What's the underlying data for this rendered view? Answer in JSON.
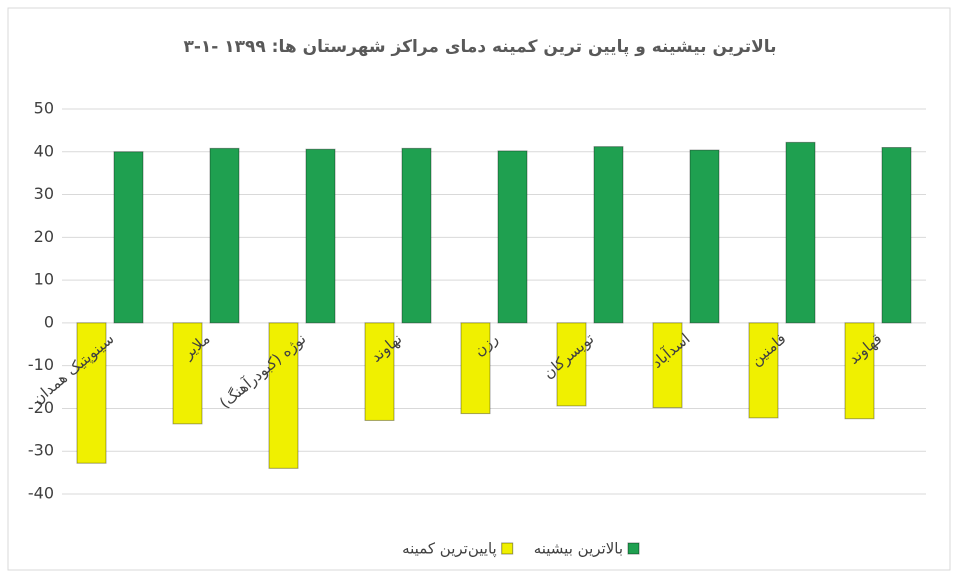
{
  "chart_data": {
    "type": "bar",
    "title": "۳-۱- بالاترین بیشینه و پایین ترین کمینه دمای مراکز شهرستان ها: ۱۳۹۹",
    "categories": [
      "سینوپتیک همدان",
      "ملایر",
      "نوژه (کبودرآهنگ)",
      "نهاوند",
      "رزن",
      "تویسرکان",
      "اسدآباد",
      "فامنین",
      "قهاوند"
    ],
    "series": [
      {
        "name": "پایین‌ترین کمینه",
        "color": "#f0f000",
        "values": [
          -32.8,
          -23.6,
          -34,
          -22.8,
          -21.2,
          -19.4,
          -19.8,
          -22.2,
          -22.4
        ]
      },
      {
        "name": "بالاترین بیشینه",
        "color": "#1fa050",
        "values": [
          40,
          40.8,
          40.6,
          40.8,
          40.2,
          41.2,
          40.4,
          42.2,
          41
        ]
      }
    ],
    "ylim": [
      -40,
      50
    ],
    "yticks": [
      -40,
      -30,
      -20,
      -10,
      0,
      10,
      20,
      30,
      40,
      50
    ],
    "grid": true
  }
}
